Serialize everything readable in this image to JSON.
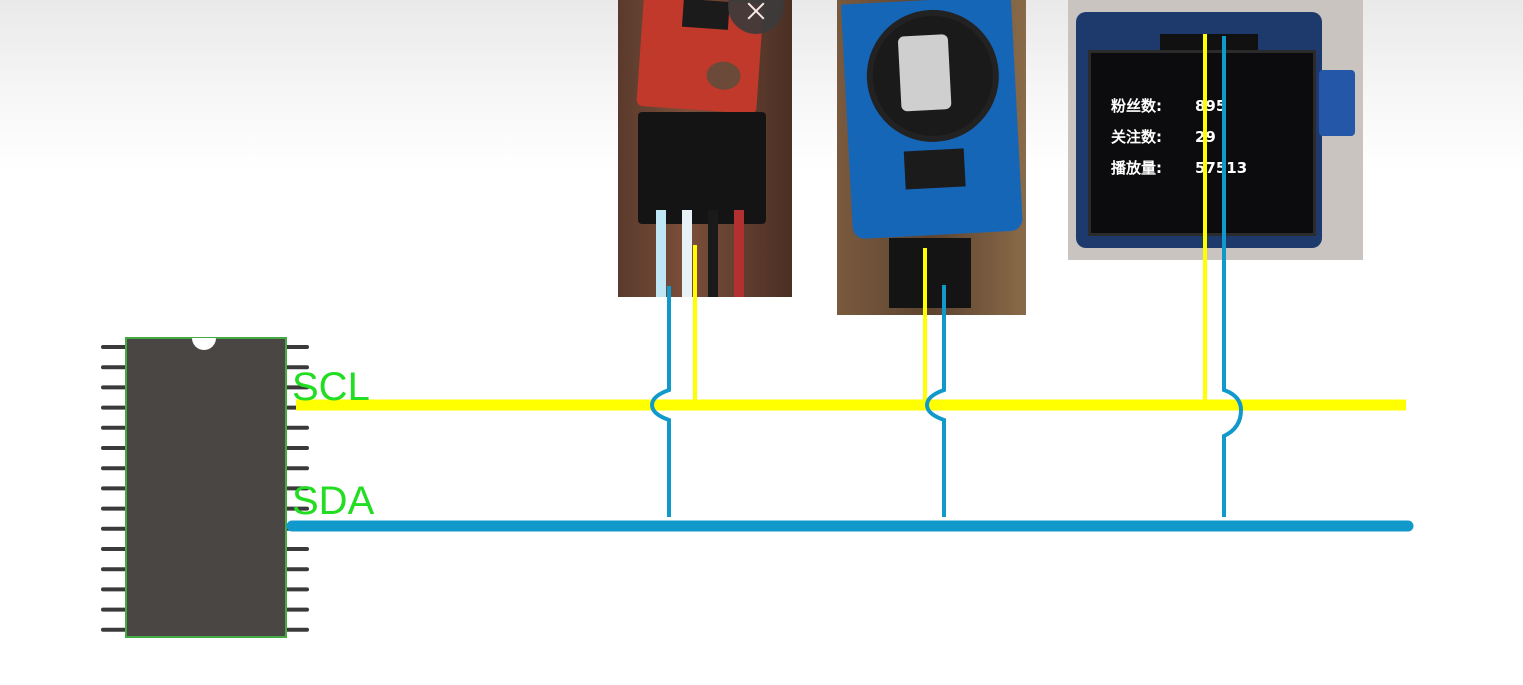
{
  "bus": {
    "scl_label": "SCL",
    "sda_label": "SDA",
    "scl_color": "#ffff00",
    "sda_color": "#1199cc",
    "label_color": "#22dd22"
  },
  "chip": {
    "body_color": "#4a4644",
    "outline_color": "#44aa44",
    "pins_per_side": 15
  },
  "modules": [
    {
      "name": "sensor-module"
    },
    {
      "name": "rtc-module"
    },
    {
      "name": "oled-module"
    }
  ],
  "oled": {
    "rows": [
      {
        "label": "粉丝数:",
        "value": "895"
      },
      {
        "label": "关注数:",
        "value": "29"
      },
      {
        "label": "播放量:",
        "value": "57513"
      }
    ]
  },
  "icons": {
    "close": "close-icon"
  }
}
